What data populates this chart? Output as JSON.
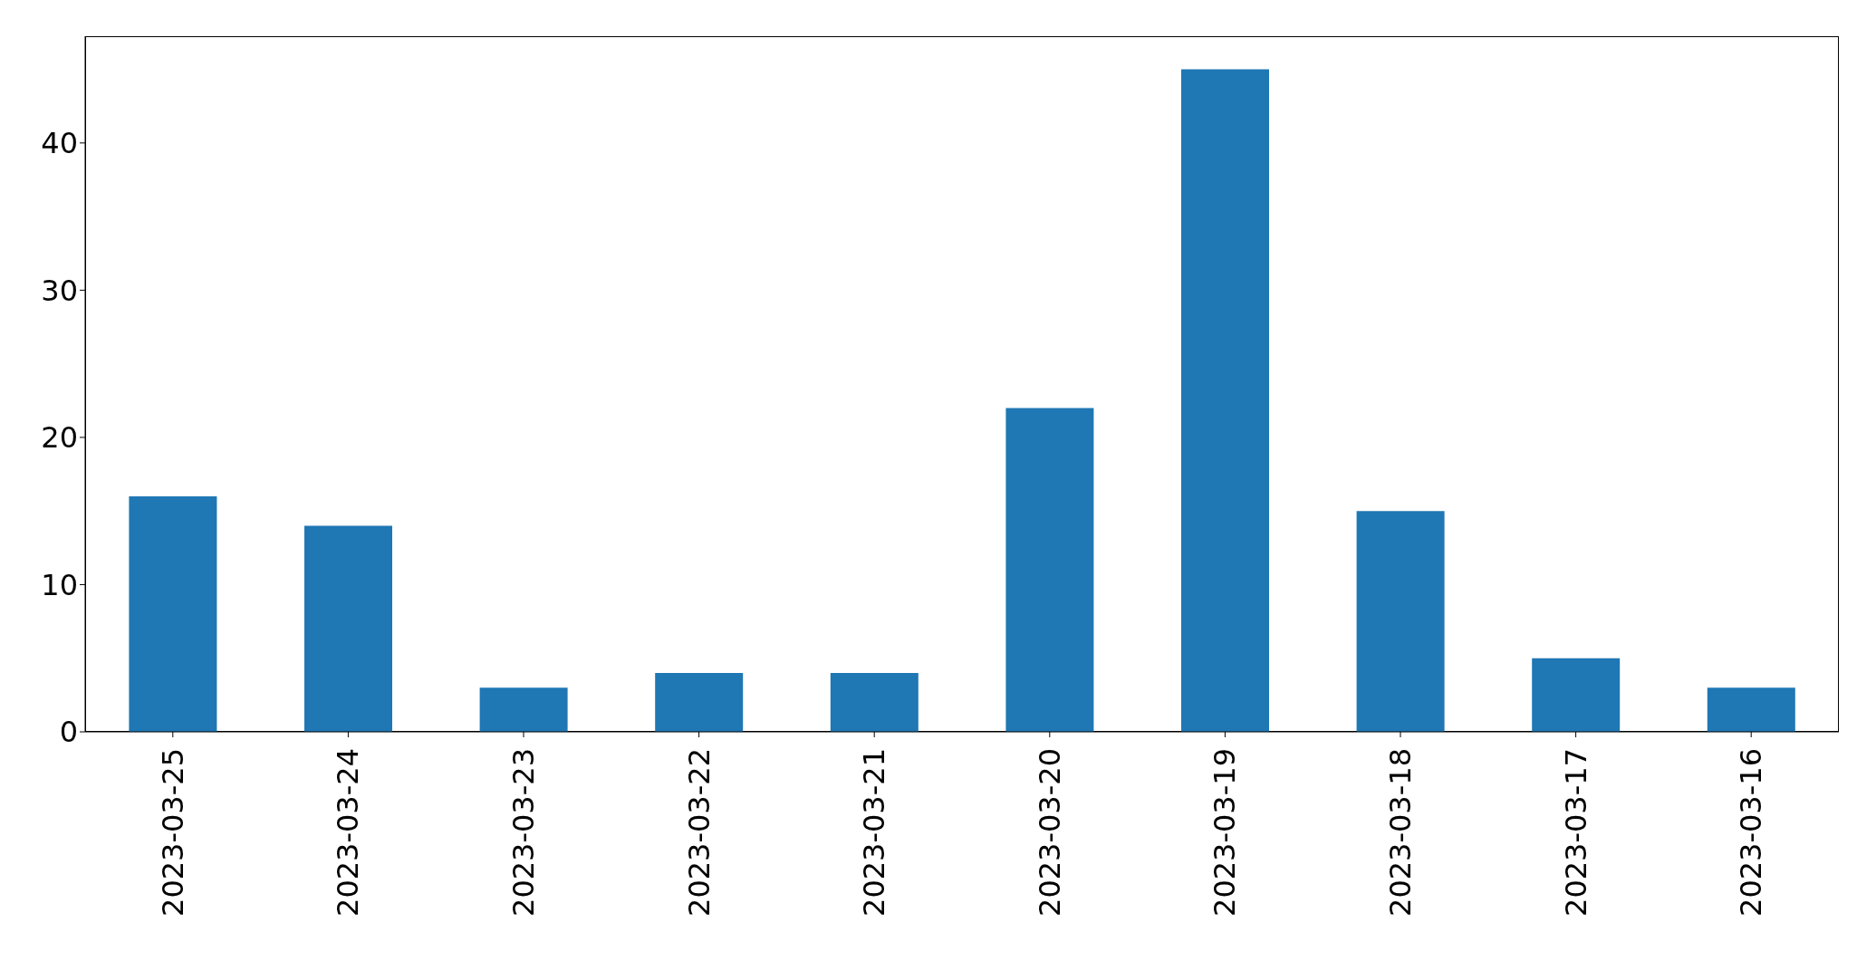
{
  "chart_data": {
    "type": "bar",
    "categories": [
      "2023-03-25",
      "2023-03-24",
      "2023-03-23",
      "2023-03-22",
      "2023-03-21",
      "2023-03-20",
      "2023-03-19",
      "2023-03-18",
      "2023-03-17",
      "2023-03-16"
    ],
    "values": [
      16,
      14,
      3,
      4,
      4,
      22,
      45,
      15,
      5,
      3
    ],
    "color": "#1f77b4",
    "ylim": [
      0,
      47.25
    ],
    "yticks": [
      0,
      10,
      20,
      30,
      40
    ],
    "grid": false
  }
}
